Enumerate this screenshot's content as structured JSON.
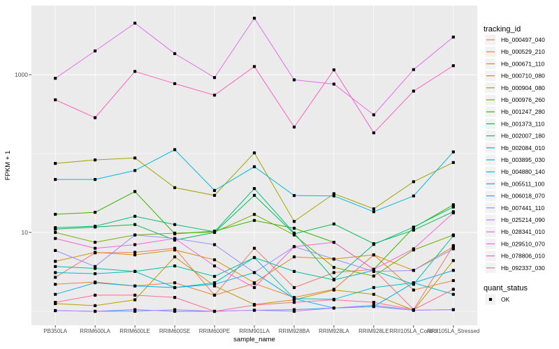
{
  "figure": {
    "background": "#FFFFFF",
    "panel_background": "#EBEBEB",
    "grid_color": "#FFFFFF",
    "tick_color": "#333333",
    "axis_text_color": "#4D4D4D",
    "point_color": "#000000",
    "legend_key_background": "#F2F2F2"
  },
  "chart_data": {
    "type": "line",
    "title": "",
    "xlabel": "sample_name",
    "ylabel": "FPKM + 1",
    "y_scale": "log10",
    "ylim": [
      0.68,
      7500
    ],
    "grid": true,
    "legend_position": "right",
    "y_ticks": [
      {
        "value": 10,
        "label": "10"
      },
      {
        "value": 1000,
        "label": "1000"
      }
    ],
    "y_gridlines_major": [
      10,
      1000
    ],
    "y_gridlines_minor": [
      1,
      100
    ],
    "categories": [
      "PB350LA",
      "RRIM600LA",
      "RRIM600LE",
      "RRIM600SE",
      "RRIM600PE",
      "RRIM901LA",
      "RRIM928BA",
      "RRIM928LA",
      "RRIM928LE",
      "RRII105LA_Control",
      "RRII105LA_Stressed"
    ],
    "legend": {
      "series_title": "tracking_id",
      "shape_title": "quant_status",
      "shape_items": [
        {
          "label": "OK",
          "marker": "black-square"
        }
      ]
    },
    "series": [
      {
        "name": "Hb_000497_040",
        "color": "#F8766D",
        "values": [
          2.7,
          5.5,
          5.6,
          6.3,
          1.6,
          6.3,
          2.0,
          3.1,
          3.4,
          1.05,
          6.8
        ]
      },
      {
        "name": "Hb_000529_210",
        "color": "#EA8331",
        "values": [
          2.2,
          2.35,
          2.1,
          2.3,
          1.6,
          2.25,
          1.5,
          1.9,
          5.2,
          1.86,
          2.45
        ]
      },
      {
        "name": "Hb_000671_110",
        "color": "#D89000",
        "values": [
          4.3,
          5.6,
          5.2,
          6.0,
          4.5,
          2.3,
          4.9,
          4.6,
          5.2,
          3.3,
          6.6
        ]
      },
      {
        "name": "Hb_000710_080",
        "color": "#C09B00",
        "values": [
          1.25,
          1.18,
          1.4,
          4.9,
          2.1,
          1.22,
          1.4,
          1.86,
          1.64,
          1.03,
          4.4
        ]
      },
      {
        "name": "Hb_000904_080",
        "color": "#A3A500",
        "values": [
          75,
          83,
          88,
          37,
          29.5,
          102,
          13.8,
          31,
          19.9,
          44,
          77
        ]
      },
      {
        "name": "Hb_000976_260",
        "color": "#7CAE00",
        "values": [
          10,
          7.5,
          9.3,
          9.8,
          10.1,
          16.9,
          9.3,
          3.6,
          2.8,
          6.0,
          9.3
        ]
      },
      {
        "name": "Hb_001247_280",
        "color": "#39B600",
        "values": [
          17,
          18,
          33,
          9.6,
          10.4,
          14.2,
          11.3,
          7.5,
          3.4,
          11.5,
          22.4
        ]
      },
      {
        "name": "Hb_001373_110",
        "color": "#00BB4E",
        "values": [
          11,
          11.7,
          12.6,
          8.0,
          10.0,
          29.5,
          9.6,
          12.8,
          7.2,
          10.7,
          18.3
        ]
      },
      {
        "name": "Hb_002007_180",
        "color": "#00BF7D",
        "values": [
          11.5,
          12,
          16,
          12.6,
          10.2,
          36,
          9.8,
          2.55,
          7.05,
          11.7,
          21
        ]
      },
      {
        "name": "Hb_002084_010",
        "color": "#00C1A3",
        "values": [
          3.7,
          3.5,
          3.2,
          3.76,
          2.77,
          4.8,
          3.2,
          2.5,
          3.3,
          2.2,
          9.1
        ]
      },
      {
        "name": "Hb_003895_030",
        "color": "#00BFC4",
        "values": [
          3.1,
          3.0,
          3.2,
          2.0,
          2.3,
          4.8,
          1.45,
          1.42,
          2.0,
          2.3,
          1.64
        ]
      },
      {
        "name": "Hb_004880_140",
        "color": "#00BAE0",
        "values": [
          47,
          47,
          61,
          112,
          34,
          68,
          29.4,
          29,
          18.3,
          29,
          105
        ]
      },
      {
        "name": "Hb_005511_100",
        "color": "#00B0F6",
        "values": [
          1.64,
          2.3,
          2.1,
          2.0,
          2.2,
          3.1,
          1.45,
          1.1,
          1.15,
          2.3,
          3.3
        ]
      },
      {
        "name": "Hb_006018_070",
        "color": "#35A2FF",
        "values": [
          1.02,
          1.0,
          1.05,
          1.0,
          1.0,
          1.03,
          1.05,
          1.1,
          1.15,
          1.03,
          1.05
        ]
      },
      {
        "name": "Hb_007441_110",
        "color": "#9590FF",
        "values": [
          5.9,
          3.7,
          9.3,
          8.4,
          7.0,
          3.1,
          6.6,
          4.6,
          3.2,
          3.3,
          6.2
        ]
      },
      {
        "name": "Hb_025214_090",
        "color": "#C77CFF",
        "values": [
          1.02,
          1.0,
          1.0,
          1.05,
          1.0,
          1.03,
          1.0,
          1.1,
          1.2,
          1.03,
          1.05
        ]
      },
      {
        "name": "Hb_028341_010",
        "color": "#E76BF3",
        "values": [
          900,
          2000,
          4500,
          1850,
          920,
          5200,
          860,
          760,
          310,
          1160,
          3000
        ]
      },
      {
        "name": "Hb_029510_070",
        "color": "#FA62DB",
        "values": [
          8.4,
          6.3,
          7.0,
          8.4,
          3.76,
          2.0,
          6.6,
          7.5,
          3.4,
          6.2,
          17.7
        ]
      },
      {
        "name": "Hb_078806_010",
        "color": "#FF62BC",
        "values": [
          480,
          285,
          1100,
          770,
          550,
          1270,
          217,
          1150,
          183,
          620,
          1300
        ]
      },
      {
        "name": "Hb_092337_030",
        "color": "#FF6A98",
        "values": [
          1.3,
          1.6,
          1.6,
          1.5,
          1.0,
          1.2,
          1.3,
          1.4,
          1.3,
          1.05,
          1.9
        ]
      }
    ]
  }
}
